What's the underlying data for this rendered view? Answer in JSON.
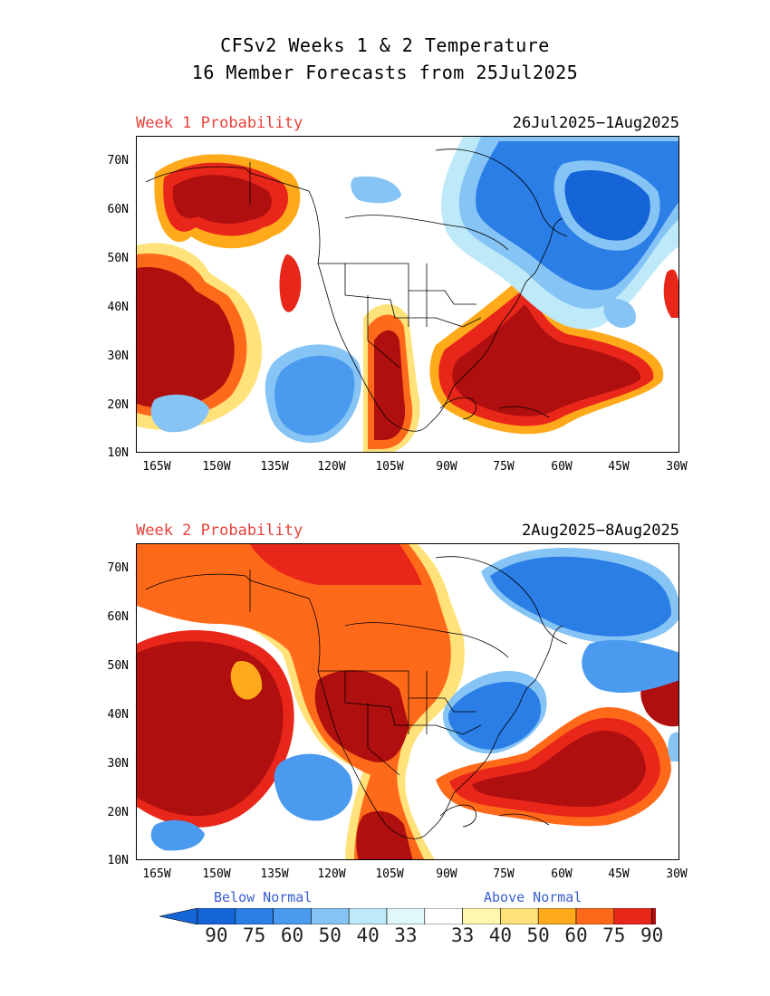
{
  "title": {
    "line1": "CFSv2 Weeks 1 & 2 Temperature",
    "line2": "16 Member Forecasts from 25Jul2025"
  },
  "panels": [
    {
      "label": "Week 1 Probability",
      "dates": "26Jul2025−1Aug2025"
    },
    {
      "label": "Week 2 Probability",
      "dates": "2Aug2025−8Aug2025"
    }
  ],
  "axes": {
    "lat_labels": [
      "70N",
      "60N",
      "50N",
      "40N",
      "30N",
      "20N",
      "10N"
    ],
    "lon_labels": [
      "165W",
      "150W",
      "135W",
      "120W",
      "105W",
      "90W",
      "75W",
      "60W",
      "45W",
      "30W"
    ],
    "lat_range": [
      10,
      75
    ],
    "lon_range": [
      -167,
      -30
    ]
  },
  "legend": {
    "below": "Below Normal",
    "above": "Above Normal",
    "values": [
      "90",
      "75",
      "60",
      "50",
      "40",
      "33",
      "33",
      "40",
      "50",
      "60",
      "75",
      "90"
    ],
    "colors": {
      "below": [
        "#1565d8",
        "#2a7ee6",
        "#4a9bef",
        "#86c4f5",
        "#bde9f8",
        "#e0f7fb"
      ],
      "neutral": "#ffffff",
      "above": [
        "#fff7b0",
        "#ffe27a",
        "#ffaa1a",
        "#ff6a1a",
        "#e8271a",
        "#b00f0f"
      ]
    }
  }
}
